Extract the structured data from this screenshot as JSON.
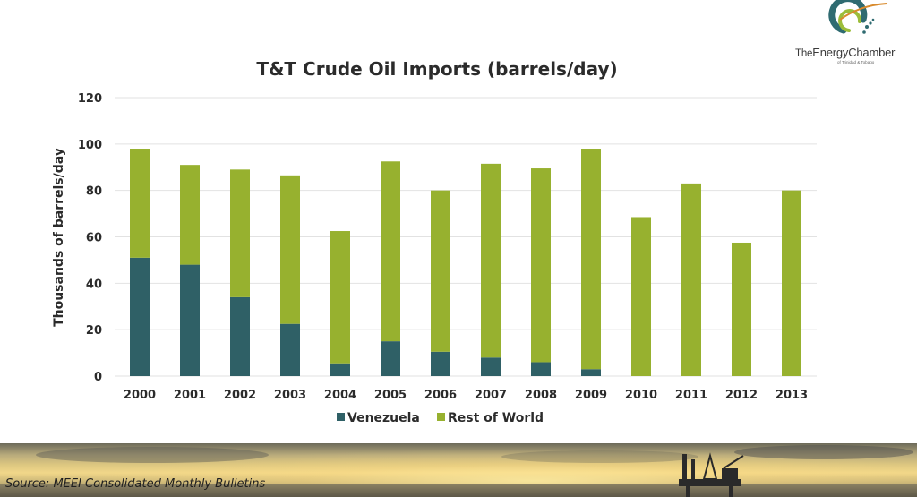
{
  "logo": {
    "text_prefix": "The",
    "text_main": "EnergyChamber",
    "text_sub": "of Trinidad & Tobago"
  },
  "footer": {
    "source": "Source: MEEI Consolidated Monthly Bulletins"
  },
  "colors": {
    "venezuela": "#2f6066",
    "rest_of_world": "#97b12f",
    "grid": "#e2e2e2"
  },
  "chart_data": {
    "type": "bar",
    "stacked": true,
    "title": "T&T Crude Oil Imports (barrels/day)",
    "xlabel": "",
    "ylabel": "Thousands of barrels/day",
    "ylim": [
      0,
      120
    ],
    "yticks": [
      0,
      20,
      40,
      60,
      80,
      100,
      120
    ],
    "grid": true,
    "legend_position": "bottom",
    "categories": [
      "2000",
      "2001",
      "2002",
      "2003",
      "2004",
      "2005",
      "2006",
      "2007",
      "2008",
      "2009",
      "2010",
      "2011",
      "2012",
      "2013"
    ],
    "series": [
      {
        "name": "Venezuela",
        "color": "#2f6066",
        "values": [
          51,
          48,
          34,
          22.5,
          5.5,
          15,
          10.5,
          8,
          6,
          3,
          0,
          0,
          0,
          0
        ]
      },
      {
        "name": "Rest of World",
        "color": "#97b12f",
        "values": [
          47,
          43,
          55,
          64,
          57,
          77.5,
          69.5,
          83.5,
          83.5,
          95,
          68.5,
          83,
          57.5,
          80
        ]
      }
    ]
  }
}
